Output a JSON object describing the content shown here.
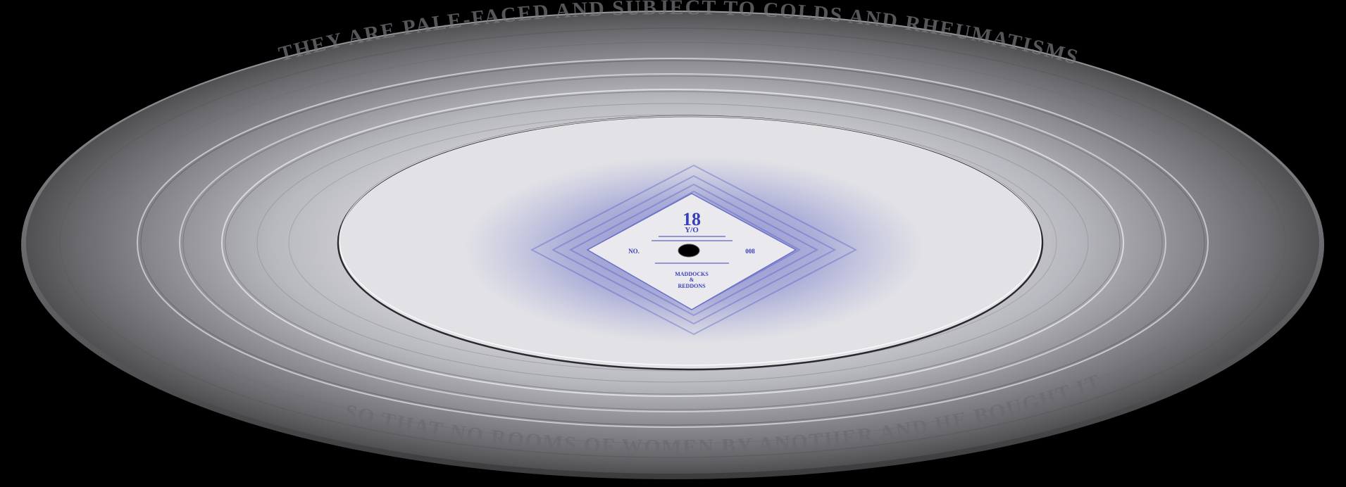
{
  "record": {
    "label": {
      "age_number": "18",
      "age_unit": "Y/O",
      "no_label": "NO.",
      "catalog_number": "008",
      "brand_line1": "MADDOCKS",
      "brand_line2": "&",
      "brand_line3": "REDDONS"
    },
    "groove_texts": [
      "THEY ARE PALE-FACED AND SUBJECT TO COLDS AND RHEUMATISMS",
      "SO THAT NO ROOMS OF WOMEN BY ANOTHER AND HE BOUGHT IT"
    ],
    "colors": {
      "background": "#000000",
      "vinyl_outer": "#4a4a4a",
      "vinyl_mid": "#a8a8ae",
      "vinyl_inner": "#d9d9de",
      "label_ink": "#3a3fb8",
      "label_paper": "#e8e8ec",
      "spindle_hole": "#000000"
    }
  }
}
